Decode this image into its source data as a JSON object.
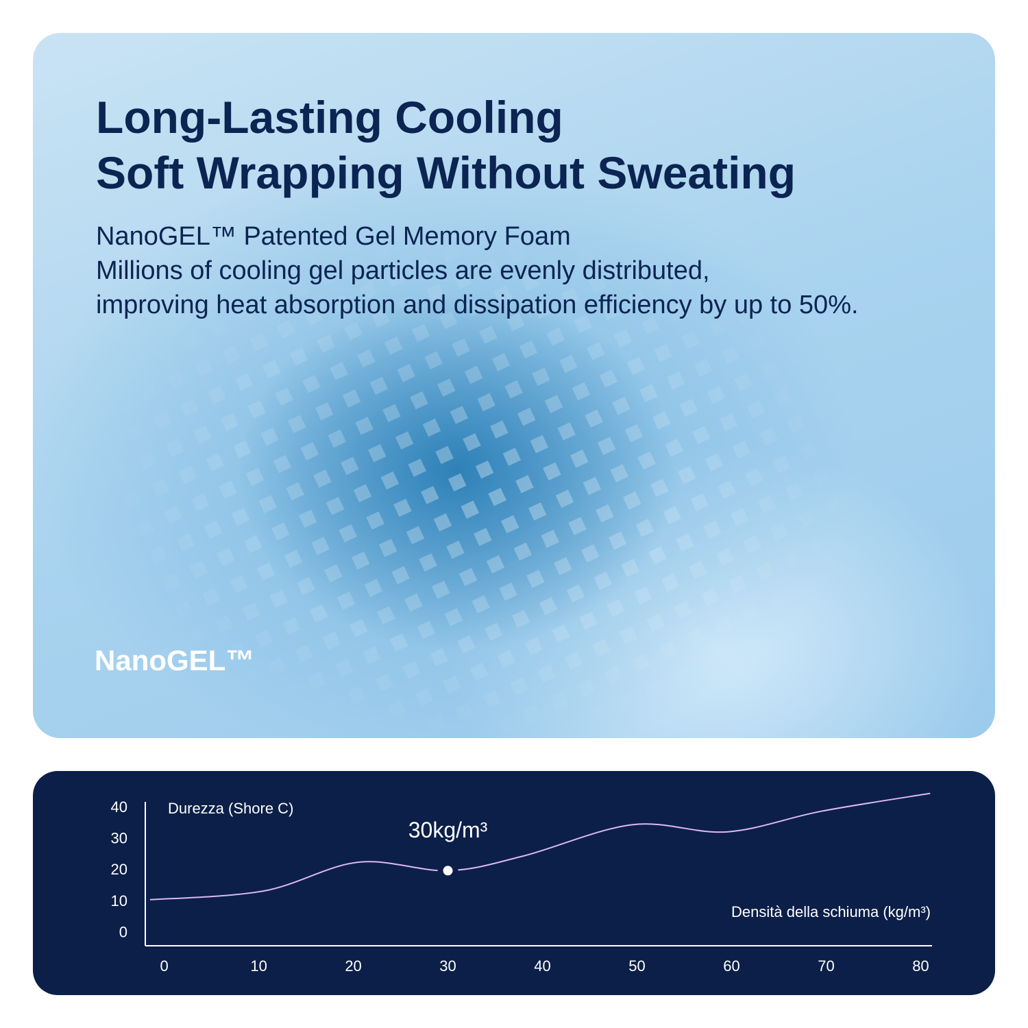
{
  "header": {
    "title_lines": [
      "Long-Lasting Cooling",
      "Soft Wrapping Without Sweating"
    ],
    "body_lines": [
      "NanoGEL™ Patented Gel Memory Foam",
      "Millions of cooling gel particles are evenly distributed,",
      "improving heat absorption and dissipation efficiency by up to 50%."
    ],
    "logo": "NanoGEL™"
  },
  "chart_data": {
    "type": "line",
    "y_label": "Durezza (Shore C)",
    "x_label": "Densità della schiuma (kg/m³)",
    "x": [
      -1.5,
      10.5,
      20.5,
      30,
      38,
      49.5,
      59.5,
      69.5,
      81
    ],
    "series": [
      {
        "name": null,
        "color": "#dcb9f2",
        "values": [
          10.7,
          13.5,
          22.7,
          20,
          24.7,
          34.7,
          32.4,
          39,
          44.7
        ]
      }
    ],
    "highlight": {
      "x": 30,
      "y": 20,
      "label": "30kg/m³"
    },
    "xlim": [
      -2,
      81.2
    ],
    "ylim": [
      -4,
      42
    ],
    "xticks": [
      0,
      10,
      20,
      30,
      40,
      50,
      60,
      70,
      80
    ],
    "yticks": [
      0,
      10,
      20,
      30,
      40
    ]
  }
}
